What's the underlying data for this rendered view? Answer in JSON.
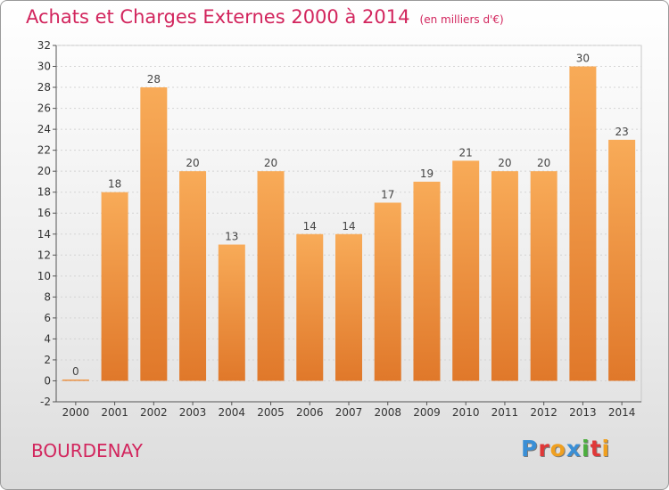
{
  "title": "Achats et Charges Externes 2000 à 2014",
  "unit": "(en milliers d'€)",
  "commune": "BOURDENAY",
  "logo": {
    "text": "Proxiti",
    "letters": [
      {
        "char": "P",
        "color": "#3a8fd6"
      },
      {
        "char": "r",
        "color": "#e03838"
      },
      {
        "char": "o",
        "color": "#f0a020"
      },
      {
        "char": "x",
        "color": "#3a8fd6"
      },
      {
        "char": "i",
        "color": "#4cae3e"
      },
      {
        "char": "t",
        "color": "#e03838"
      },
      {
        "char": "i",
        "color": "#f0a020"
      }
    ]
  },
  "colors": {
    "title": "#d2255d",
    "bar_light": "#f8ab58",
    "bar_dark": "#e0782a",
    "axis": "#555555"
  },
  "chart_data": {
    "type": "bar",
    "categories": [
      "2000",
      "2001",
      "2002",
      "2003",
      "2004",
      "2005",
      "2006",
      "2007",
      "2008",
      "2009",
      "2010",
      "2011",
      "2012",
      "2013",
      "2014"
    ],
    "values": [
      0,
      18,
      28,
      20,
      13,
      20,
      14,
      14,
      17,
      19,
      21,
      20,
      20,
      30,
      23
    ],
    "data_labels": [
      "0",
      "18",
      "28",
      "20",
      "13",
      "20",
      "14",
      "14",
      "17",
      "19",
      "21",
      "20",
      "20",
      "30",
      "23"
    ],
    "ylim": [
      -2,
      32
    ],
    "yticks": [
      -2,
      0,
      2,
      4,
      6,
      8,
      10,
      12,
      14,
      16,
      18,
      20,
      22,
      24,
      26,
      28,
      30,
      32
    ],
    "grid": true,
    "title": "Achats et Charges Externes 2000 à 2014",
    "xlabel": "",
    "ylabel": ""
  }
}
